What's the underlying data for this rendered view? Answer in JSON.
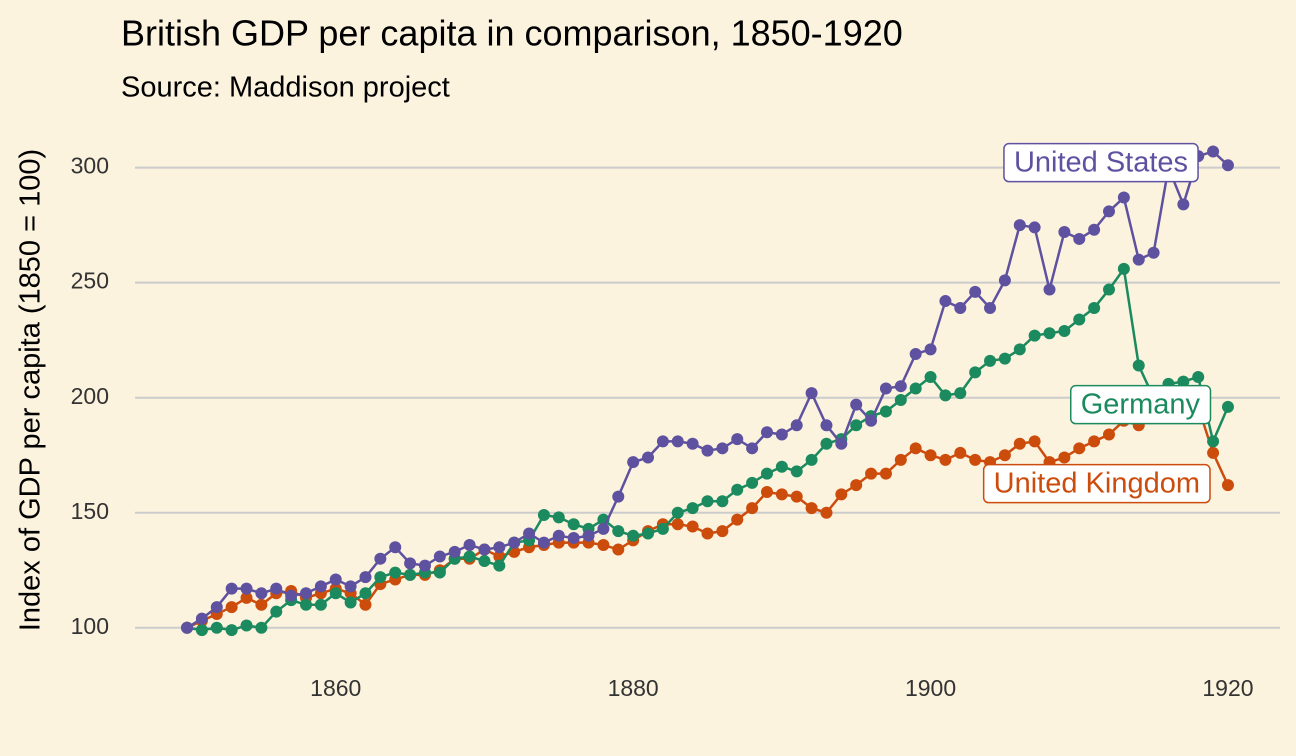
{
  "chart_data": {
    "type": "line",
    "title": "British GDP per capita in comparison, 1850-1920",
    "subtitle": "Source: Maddison project",
    "y_label": "Index of GDP per capita (1850 = 100)",
    "x": [
      1850,
      1851,
      1852,
      1853,
      1854,
      1855,
      1856,
      1857,
      1858,
      1859,
      1860,
      1861,
      1862,
      1863,
      1864,
      1865,
      1866,
      1867,
      1868,
      1869,
      1870,
      1871,
      1872,
      1873,
      1874,
      1875,
      1876,
      1877,
      1878,
      1879,
      1880,
      1881,
      1882,
      1883,
      1884,
      1885,
      1886,
      1887,
      1888,
      1889,
      1890,
      1891,
      1892,
      1893,
      1894,
      1895,
      1896,
      1897,
      1898,
      1899,
      1900,
      1901,
      1902,
      1903,
      1904,
      1905,
      1906,
      1907,
      1908,
      1909,
      1910,
      1911,
      1912,
      1913,
      1914,
      1915,
      1916,
      1917,
      1918,
      1919,
      1920
    ],
    "series": [
      {
        "name": "United States",
        "color": "#5e52a0",
        "values": [
          100,
          104,
          109,
          117,
          117,
          115,
          117,
          114,
          115,
          118,
          121,
          118,
          122,
          130,
          135,
          128,
          127,
          131,
          133,
          136,
          134,
          135,
          137,
          141,
          137,
          140,
          139,
          140,
          143,
          157,
          172,
          174,
          181,
          181,
          180,
          177,
          178,
          182,
          178,
          185,
          184,
          188,
          202,
          188,
          180,
          197,
          190,
          204,
          205,
          219,
          221,
          242,
          239,
          246,
          239,
          251,
          275,
          274,
          247,
          272,
          269,
          273,
          281,
          287,
          260,
          263,
          300,
          284,
          305,
          307,
          301
        ]
      },
      {
        "name": "Germany",
        "color": "#1b8a5e",
        "values": [
          100,
          99,
          100,
          99,
          101,
          100,
          107,
          112,
          110,
          110,
          115,
          111,
          115,
          122,
          124,
          123,
          124,
          124,
          130,
          131,
          129,
          127,
          137,
          138,
          149,
          148,
          145,
          143,
          147,
          142,
          140,
          141,
          143,
          150,
          152,
          155,
          155,
          160,
          163,
          167,
          170,
          168,
          173,
          180,
          182,
          188,
          192,
          194,
          199,
          204,
          209,
          201,
          202,
          211,
          216,
          217,
          221,
          227,
          228,
          229,
          234,
          239,
          247,
          256,
          214,
          200,
          206,
          207,
          209,
          181,
          196
        ]
      },
      {
        "name": "United Kingdom",
        "color": "#cc4c0c",
        "values": [
          100,
          103,
          106,
          109,
          113,
          110,
          115,
          116,
          113,
          115,
          117,
          115,
          110,
          119,
          121,
          123,
          123,
          125,
          130,
          130,
          134,
          131,
          133,
          135,
          136,
          137,
          137,
          137,
          136,
          134,
          138,
          142,
          145,
          145,
          144,
          141,
          142,
          147,
          152,
          159,
          158,
          157,
          152,
          150,
          158,
          162,
          167,
          167,
          173,
          178,
          175,
          173,
          176,
          173,
          172,
          175,
          180,
          181,
          172,
          174,
          178,
          181,
          184,
          190,
          188,
          195,
          200,
          200,
          196,
          176,
          162
        ]
      }
    ],
    "xlim": [
      1846.5,
      1923.5
    ],
    "ylim": [
      86,
      312
    ],
    "xticks": [
      1860,
      1880,
      1900,
      1920
    ],
    "yticks": [
      100,
      150,
      200,
      250,
      300
    ],
    "grid": true
  }
}
